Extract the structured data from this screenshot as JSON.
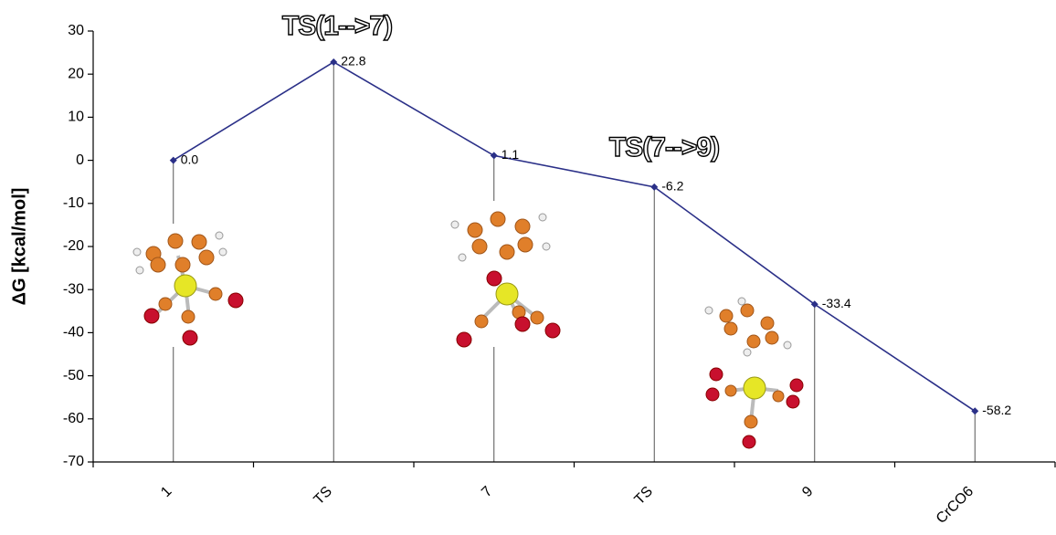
{
  "chart_data": {
    "type": "line",
    "y_label": "ΔG [kcal/mol]",
    "categories": [
      "1",
      "TS",
      "7",
      "TS",
      "9",
      "CrCO6"
    ],
    "values": [
      0.0,
      22.8,
      1.1,
      -6.2,
      -33.4,
      -58.2
    ],
    "value_labels": [
      "0.0",
      "22.8",
      "1.1",
      "-6.2",
      "-33.4",
      "-58.2"
    ],
    "color": "#2b3088",
    "annotations": [
      "TS(1-->7)",
      "TS(7-->9)"
    ],
    "ylim": [
      -70,
      30
    ],
    "yticks": [
      -70,
      -60,
      -50,
      -40,
      -30,
      -20,
      -10,
      0,
      10,
      20,
      30
    ]
  }
}
